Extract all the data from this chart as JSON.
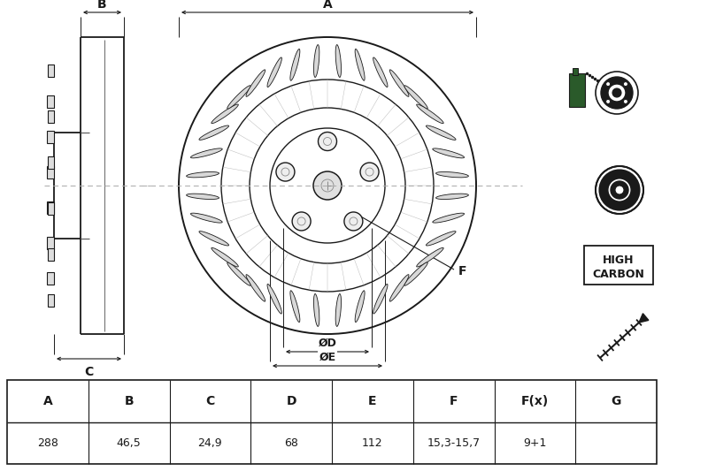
{
  "bg_color": "#ffffff",
  "line_color": "#1a1a1a",
  "dash_color": "#aaaaaa",
  "table_headers": [
    "A",
    "B",
    "C",
    "D",
    "E",
    "F",
    "F(x)",
    "G"
  ],
  "table_values": [
    "288",
    "46,5",
    "24,9",
    "68",
    "112",
    "15,3-15,7",
    "9+1",
    ""
  ],
  "high_carbon_text": [
    "HIGH",
    "CARBON"
  ],
  "label_F": "F",
  "dim_A": "A",
  "dim_B": "B",
  "dim_C": "C",
  "dim_D": "ØD",
  "dim_E": "ØE"
}
